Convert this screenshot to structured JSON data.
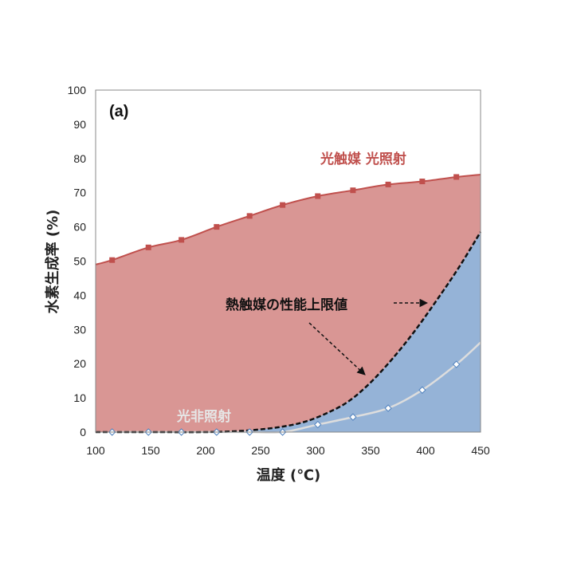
{
  "chart_data": {
    "type": "area",
    "panel_label": "(a)",
    "xlabel": "温度 (℃)",
    "ylabel": "水素生成率 (%)",
    "xlim": [
      100,
      450
    ],
    "ylim": [
      0,
      100
    ],
    "xticks": [
      100,
      150,
      200,
      250,
      300,
      350,
      400,
      450
    ],
    "yticks": [
      0,
      10,
      20,
      30,
      40,
      50,
      60,
      70,
      80,
      90,
      100
    ],
    "series": [
      {
        "name": "光触媒 光照射",
        "color": "#c0504d",
        "fill": "#d99694",
        "x": [
          100,
          115,
          148,
          178,
          210,
          240,
          270,
          302,
          334,
          366,
          397,
          428,
          450
        ],
        "y": [
          49,
          50.3,
          54,
          56.2,
          60,
          63.2,
          66.4,
          69,
          70.7,
          72.4,
          73.3,
          74.6,
          75.3
        ]
      },
      {
        "name": "光非照射",
        "color": "#dddddd",
        "x": [
          115,
          148,
          178,
          210,
          240,
          270,
          302,
          334,
          366,
          397,
          428,
          450
        ],
        "y": [
          0,
          0,
          0,
          0,
          0,
          0,
          2.2,
          4.4,
          7.0,
          12.3,
          19.8,
          26.2
        ]
      },
      {
        "name": "熱触媒の性能上限値",
        "color": "#111111",
        "fill": "#95b3d7",
        "x": [
          100,
          150,
          200,
          230,
          250,
          270,
          290,
          310,
          330,
          350,
          370,
          390,
          410,
          430,
          450
        ],
        "y": [
          0,
          0,
          0,
          0.3,
          0.8,
          1.6,
          3.0,
          5.5,
          9.0,
          14.5,
          21.5,
          29.5,
          38.5,
          48.0,
          58.5
        ]
      }
    ],
    "annotations": {
      "photo": "光触媒 光照射",
      "dark": "光非照射",
      "limit": "熱触媒の性能上限値"
    }
  }
}
